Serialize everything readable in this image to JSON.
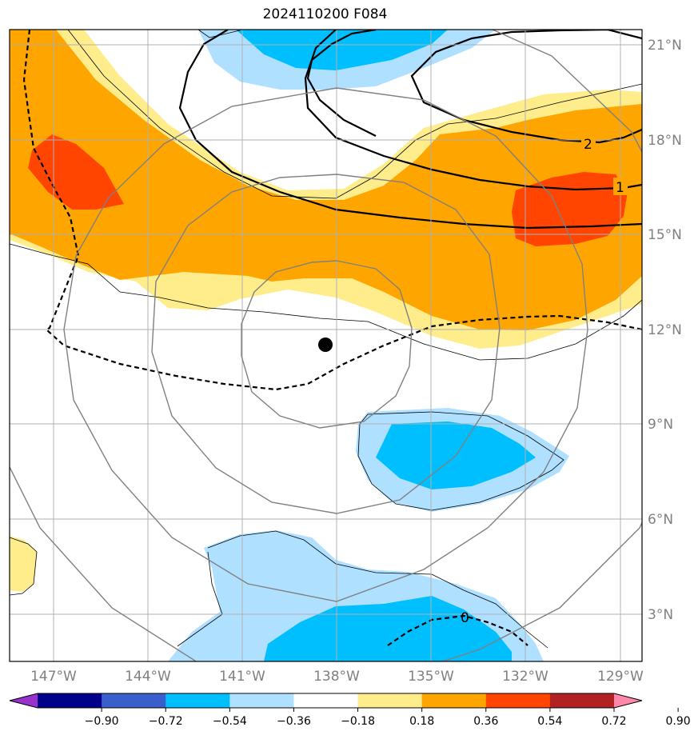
{
  "title": "2024110200 F084",
  "map": {
    "lat_labels": [
      "21°N",
      "18°N",
      "15°N",
      "12°N",
      "9°N",
      "6°N",
      "3°N"
    ],
    "lon_labels": [
      "147°W",
      "144°W",
      "141°W",
      "138°W",
      "135°W",
      "132°W",
      "129°W"
    ],
    "contour_labels": [
      "2",
      "1",
      "0"
    ],
    "storm_center_marker": "storm-center-dot"
  },
  "colorbar": {
    "ticks": [
      "−0.90",
      "−0.72",
      "−0.54",
      "−0.36",
      "−0.18",
      "0.18",
      "0.36",
      "0.54",
      "0.72",
      "0.90"
    ],
    "colors": [
      "#9932cc",
      "#00008b",
      "#3a5fcd",
      "#00bfff",
      "#b0e0ff",
      "#ffffff",
      "#ffec8b",
      "#ffa500",
      "#ff4500",
      "#b22222",
      "#ff88aa"
    ]
  },
  "fill_colors": {
    "light_yellow": "#ffec8b",
    "orange": "#ffa500",
    "red_orange": "#ff4500",
    "light_blue": "#b0e0ff",
    "deep_sky_blue": "#00bfff"
  }
}
